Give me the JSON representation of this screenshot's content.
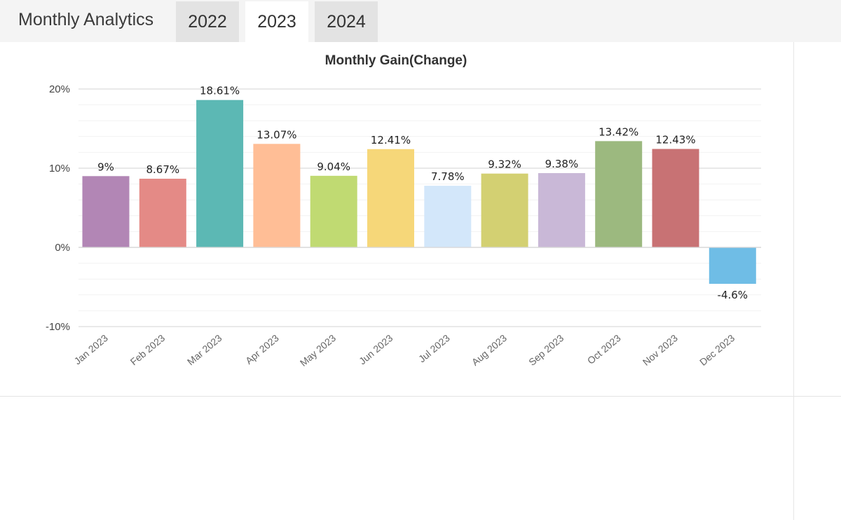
{
  "header": {
    "title": "Monthly Analytics",
    "tabs": [
      {
        "label": "2022",
        "active": false
      },
      {
        "label": "2023",
        "active": true
      },
      {
        "label": "2024",
        "active": false
      }
    ]
  },
  "chart_data": {
    "type": "bar",
    "title": "Monthly Gain(Change)",
    "categories": [
      "Jan 2023",
      "Feb 2023",
      "Mar 2023",
      "Apr 2023",
      "May 2023",
      "Jun 2023",
      "Jul 2023",
      "Aug 2023",
      "Sep 2023",
      "Oct 2023",
      "Nov 2023",
      "Dec 2023"
    ],
    "values": [
      9,
      8.67,
      18.61,
      13.07,
      9.04,
      12.41,
      7.78,
      9.32,
      9.38,
      13.42,
      12.43,
      -4.6
    ],
    "value_labels": [
      "9%",
      "8.67%",
      "18.61%",
      "13.07%",
      "9.04%",
      "12.41%",
      "7.78%",
      "9.32%",
      "9.38%",
      "13.42%",
      "12.43%",
      "-4.6%"
    ],
    "colors": [
      "#b286b5",
      "#e48a86",
      "#5cb8b4",
      "#ffbe96",
      "#c0da72",
      "#f6d779",
      "#d3e7fa",
      "#d3d072",
      "#c9b8d7",
      "#9cb97f",
      "#c87274",
      "#6fbde6"
    ],
    "ylim": [
      -10,
      20
    ],
    "yticks": [
      {
        "value": 20,
        "label": "20%"
      },
      {
        "value": 10,
        "label": "10%"
      },
      {
        "value": 0,
        "label": "0%"
      },
      {
        "value": -10,
        "label": "-10%"
      }
    ],
    "xlabel": "",
    "ylabel": "",
    "grid": true,
    "legend": "none"
  }
}
